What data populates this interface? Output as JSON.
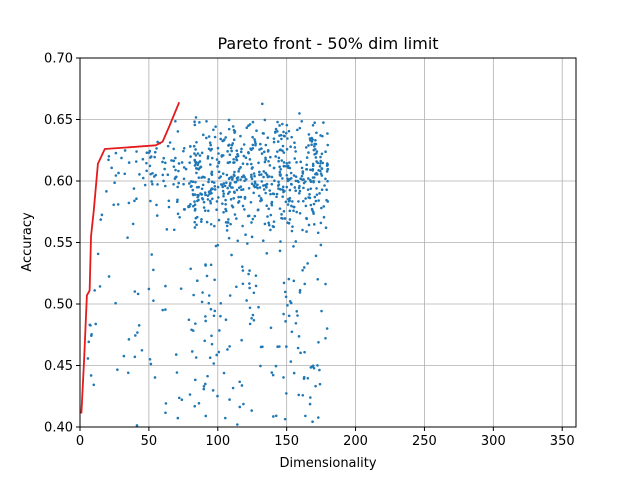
{
  "chart_data": {
    "type": "scatter",
    "title": "Pareto front - 50% dim limit",
    "xlabel": "Dimensionality",
    "ylabel": "Accuracy",
    "xlim": [
      0,
      360
    ],
    "ylim": [
      0.4,
      0.7
    ],
    "xticks": [
      0,
      50,
      100,
      150,
      200,
      250,
      300,
      350
    ],
    "yticks": [
      0.4,
      0.45,
      0.5,
      0.55,
      0.6,
      0.65,
      0.7
    ],
    "ytick_labels": [
      "0.40",
      "0.45",
      "0.50",
      "0.55",
      "0.60",
      "0.65",
      "0.70"
    ],
    "grid": true,
    "colors": {
      "points": "#1f77b4",
      "front": "#e41a1c"
    },
    "pareto_front": {
      "x": [
        1,
        3,
        5,
        7,
        8,
        10,
        13,
        18,
        55,
        60,
        65,
        72
      ],
      "y": [
        0.411,
        0.455,
        0.507,
        0.511,
        0.555,
        0.576,
        0.614,
        0.626,
        0.629,
        0.632,
        0.645,
        0.664
      ]
    },
    "scatter_seed": 7,
    "scatter_count": 900
  }
}
